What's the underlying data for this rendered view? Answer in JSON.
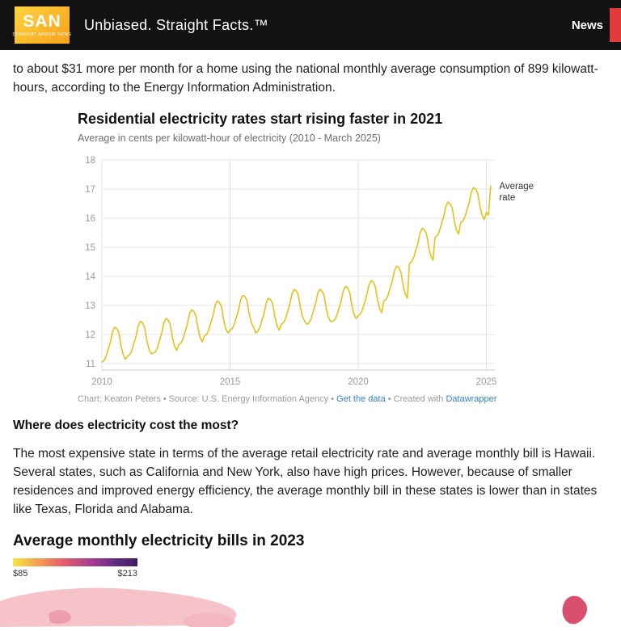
{
  "header": {
    "logo_text": "SAN",
    "logo_subtext": "STRAIGHT ARROW NEWS",
    "tagline": "Unbiased. Straight Facts.™",
    "nav_news_label": "News",
    "accent_red": "#e23b3b",
    "logo_gradient": [
      "#ffd23f",
      "#f6a21c"
    ]
  },
  "article": {
    "intro": "to about $31 more per month for a home using the national monthly average consumption of 899 kilowatt-hours, according to the Energy Information Administration.",
    "section_heading": "Where does electricity cost the most?",
    "body": "The most expensive state in terms of the average retail electricity rate and average monthly bill is Hawaii. Several states, such as California and New York, also have high prices. However, because of smaller residences and improved energy efficiency, the average monthly bill in these states is lower than in states like Texas, Florida and Alabama.",
    "map_heading": "Average monthly electricity bills in 2023"
  },
  "chart": {
    "title": "Residential electricity rates start rising faster in 2021",
    "subtitle": "Average in cents per kilowatt-hour of electricity (2010 - March 2025)",
    "annotation_line1": "Average",
    "annotation_line2": "rate",
    "caption_text1": "Chart: Keaton Peters • Source: U.S. Energy Information Agency • ",
    "caption_link1": "Get the data",
    "caption_text2": " • Created with ",
    "caption_link2": "Datawrapper"
  },
  "chart_data": {
    "type": "line",
    "title": "Residential electricity rates start rising faster in 2021",
    "subtitle": "Average in cents per kilowatt-hour of electricity (2010 - March 2025)",
    "xlabel": "",
    "ylabel": "cents per kilowatt-hour",
    "x_start": "2010-01",
    "x_end": "2025-03",
    "x_step": "month",
    "x_ticks": [
      2010,
      2015,
      2020,
      2025
    ],
    "y_ticks": [
      11,
      12,
      13,
      14,
      15,
      16,
      17,
      18
    ],
    "ylim": [
      10.8,
      18
    ],
    "grid": true,
    "legend_position": "right-annotation",
    "line_color": "#e6c119",
    "series": [
      {
        "name": "Average rate",
        "monthly_values": [
          11.05,
          11.1,
          11.25,
          11.5,
          11.75,
          12.1,
          12.25,
          12.2,
          12.05,
          11.6,
          11.3,
          11.15,
          11.25,
          11.3,
          11.45,
          11.7,
          11.95,
          12.3,
          12.45,
          12.4,
          12.25,
          11.8,
          11.5,
          11.35,
          11.35,
          11.4,
          11.55,
          11.8,
          12.05,
          12.4,
          12.55,
          12.5,
          12.35,
          11.9,
          11.6,
          11.45,
          11.65,
          11.7,
          11.85,
          12.1,
          12.35,
          12.7,
          12.85,
          12.8,
          12.65,
          12.2,
          11.9,
          11.75,
          11.95,
          12.0,
          12.15,
          12.4,
          12.65,
          13.0,
          13.15,
          13.1,
          12.95,
          12.5,
          12.2,
          12.05,
          12.15,
          12.2,
          12.35,
          12.6,
          12.85,
          13.2,
          13.35,
          13.3,
          13.15,
          12.7,
          12.4,
          12.25,
          12.05,
          12.1,
          12.25,
          12.5,
          12.75,
          13.1,
          13.25,
          13.2,
          13.05,
          12.6,
          12.3,
          12.15,
          12.35,
          12.4,
          12.55,
          12.8,
          13.05,
          13.4,
          13.55,
          13.5,
          13.35,
          12.9,
          12.6,
          12.45,
          12.35,
          12.4,
          12.55,
          12.8,
          13.05,
          13.4,
          13.55,
          13.5,
          13.35,
          12.9,
          12.6,
          12.45,
          12.45,
          12.5,
          12.65,
          12.9,
          13.15,
          13.5,
          13.65,
          13.6,
          13.45,
          13.0,
          12.7,
          12.55,
          12.65,
          12.7,
          12.85,
          13.1,
          13.35,
          13.7,
          13.85,
          13.8,
          13.65,
          13.2,
          12.9,
          12.75,
          13.15,
          13.2,
          13.35,
          13.6,
          13.85,
          14.2,
          14.35,
          14.3,
          14.15,
          13.7,
          13.4,
          13.25,
          14.45,
          14.5,
          14.65,
          14.9,
          15.15,
          15.5,
          15.65,
          15.6,
          15.45,
          15.0,
          14.7,
          14.55,
          15.35,
          15.4,
          15.55,
          15.8,
          16.05,
          16.4,
          16.55,
          16.5,
          16.35,
          15.9,
          15.6,
          15.45,
          15.85,
          15.9,
          16.05,
          16.3,
          16.55,
          16.9,
          17.05,
          17.0,
          16.85,
          16.4,
          16.1,
          15.95,
          16.2,
          16.1,
          17.1
        ]
      }
    ]
  },
  "legend": {
    "min_label": "$85",
    "max_label": "$213",
    "gradient": [
      "#f5e642",
      "#f2a24c",
      "#e35e6b",
      "#b0418e",
      "#6a2d87",
      "#3b1f5e"
    ]
  },
  "map": {
    "light_pink": "#f6c3c8",
    "mid_pink": "#ee9dad",
    "dark_rose": "#d94f70"
  }
}
